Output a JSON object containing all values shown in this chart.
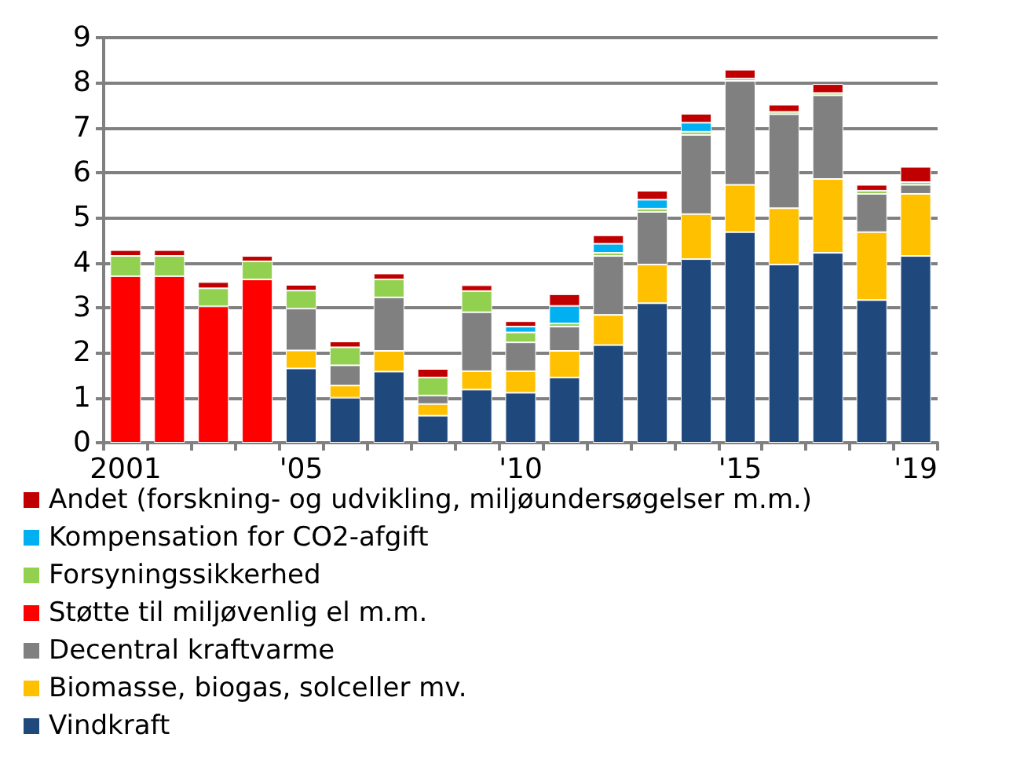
{
  "chart_data": {
    "type": "bar",
    "stacked": true,
    "categories": [
      "2001",
      null,
      null,
      null,
      "'05",
      null,
      null,
      null,
      null,
      "'10",
      null,
      null,
      null,
      null,
      "'15",
      null,
      null,
      null,
      "'19"
    ],
    "series": [
      {
        "name": "Vindkraft",
        "color": "#1f497d",
        "values": [
          null,
          null,
          null,
          null,
          1.65,
          1.0,
          1.58,
          0.6,
          1.18,
          1.11,
          1.45,
          2.17,
          3.1,
          4.08,
          4.68,
          3.96,
          4.22,
          3.17,
          4.15
        ]
      },
      {
        "name": "Biomasse, biogas, solceller mv.",
        "color": "#ffc000",
        "values": [
          null,
          null,
          null,
          null,
          0.4,
          0.27,
          0.46,
          0.26,
          0.41,
          0.48,
          0.59,
          0.67,
          0.86,
          1.0,
          1.05,
          1.25,
          1.64,
          1.51,
          1.38
        ]
      },
      {
        "name": "Decentral kraftvarme",
        "color": "#808080",
        "values": [
          null,
          null,
          null,
          null,
          0.93,
          0.45,
          1.19,
          0.19,
          1.31,
          0.64,
          0.54,
          1.31,
          1.17,
          1.76,
          2.31,
          2.09,
          1.86,
          0.85,
          0.2
        ]
      },
      {
        "name": "Støtte til miljøvenlig el m.m.",
        "color": "#ff0000",
        "values": [
          3.7,
          3.7,
          3.03,
          3.63,
          null,
          null,
          null,
          null,
          null,
          null,
          null,
          null,
          null,
          null,
          null,
          null,
          null,
          null,
          null
        ]
      },
      {
        "name": "Forsyningssikkerhed",
        "color": "#92d050",
        "values": [
          0.45,
          0.45,
          0.4,
          0.4,
          0.4,
          0.4,
          0.4,
          0.4,
          0.47,
          0.22,
          0.07,
          0.07,
          0.07,
          0.07,
          0.05,
          0.05,
          0.05,
          0.07,
          0.06
        ]
      },
      {
        "name": "Kompensation for CO2-afgift",
        "color": "#00b0f0",
        "values": [
          null,
          null,
          null,
          null,
          null,
          null,
          null,
          null,
          null,
          0.13,
          0.39,
          0.2,
          0.2,
          0.2,
          null,
          null,
          null,
          null,
          null
        ]
      },
      {
        "name": "Andet (forskning- og udvikling, miljøundersøgelser m.m.)",
        "color": "#c00000",
        "values": [
          0.13,
          0.13,
          0.14,
          0.12,
          0.13,
          0.13,
          0.13,
          0.19,
          0.13,
          0.12,
          0.26,
          0.19,
          0.2,
          0.2,
          0.2,
          0.16,
          0.2,
          0.13,
          0.34
        ]
      }
    ],
    "ylim": [
      0,
      9
    ],
    "yticks": [
      0,
      1,
      2,
      3,
      4,
      5,
      6,
      7,
      8,
      9
    ],
    "grid": "y",
    "legend": "bottom"
  }
}
